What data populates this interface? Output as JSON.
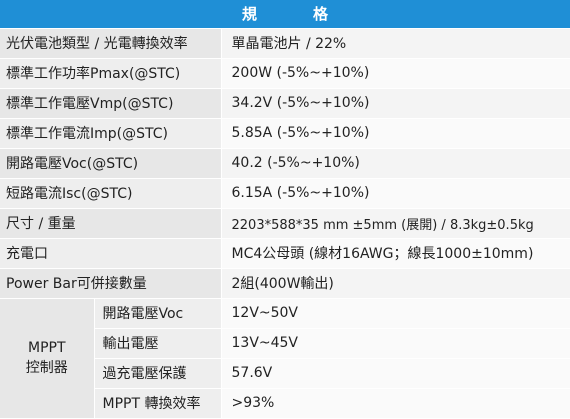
{
  "header": {
    "title_part1": "規",
    "title_part2": "格"
  },
  "rows": [
    {
      "label": "光伏電池類型 / 光電轉換效率",
      "value": "單晶電池片 / 22%"
    },
    {
      "label": "標準工作功率Pmax(@STC)",
      "value": "200W (-5%~+10%)"
    },
    {
      "label": "標準工作電壓Vmp(@STC)",
      "value": "34.2V (-5%~+10%)"
    },
    {
      "label": "標準工作電流Imp(@STC)",
      "value": "5.85A (-5%~+10%)"
    },
    {
      "label": "開路電壓Voc(@STC)",
      "value": "40.2 (-5%~+10%)"
    },
    {
      "label": "短路電流Isc(@STC)",
      "value": "6.15A (-5%~+10%)"
    },
    {
      "label": "尺寸 / 重量",
      "value": "2203*588*35 mm ±5mm (展開) / 8.3kg±0.5kg"
    },
    {
      "label": "充電口",
      "value": "MC4公母頭 (線材16AWG；線長1000±10mm)"
    },
    {
      "label": "Power Bar可併接數量",
      "value": "2組(400W輸出)"
    }
  ],
  "mppt": {
    "group_line1": "MPPT",
    "group_line2": "控制器",
    "rows": [
      {
        "label": "開路電壓Voc",
        "value": "12V~50V"
      },
      {
        "label": "輸出電壓",
        "value": "13V~45V"
      },
      {
        "label": "過充電壓保護",
        "value": "57.6V"
      },
      {
        "label": "MPPT 轉換效率",
        "value": ">93%"
      }
    ]
  }
}
